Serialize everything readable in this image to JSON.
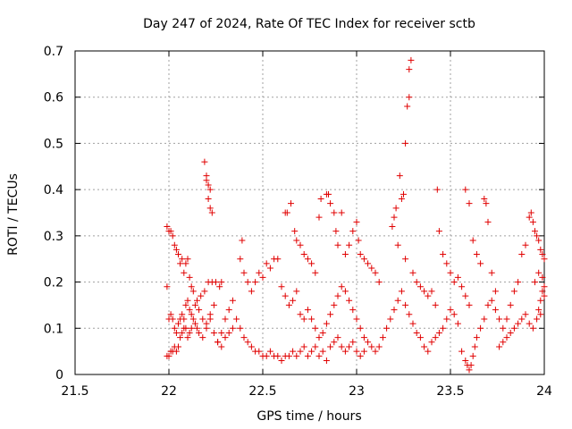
{
  "chart_data": {
    "type": "scatter",
    "title": "Day 247 of 2024, Rate Of TEC Index for receiver sctb",
    "xlabel": "GPS time / hours",
    "ylabel": "ROTI / TECUs",
    "xlim": [
      21.5,
      24
    ],
    "ylim": [
      0,
      0.7
    ],
    "xticks": [
      21.5,
      22,
      22.5,
      23,
      23.5,
      24
    ],
    "xtick_labels": [
      "21.5",
      "22",
      "22.5",
      "23",
      "23.5",
      "24"
    ],
    "yticks": [
      0,
      0.1,
      0.2,
      0.3,
      0.4,
      0.5,
      0.6,
      0.7
    ],
    "ytick_labels": [
      "0",
      "0.1",
      "0.2",
      "0.3",
      "0.4",
      "0.5",
      "0.6",
      "0.7"
    ],
    "grid": true,
    "marker": "+",
    "color": "#e00000",
    "series": [
      {
        "name": "ROTI",
        "points": [
          [
            21.99,
            0.32
          ],
          [
            22.0,
            0.31
          ],
          [
            22.01,
            0.31
          ],
          [
            22.02,
            0.3
          ],
          [
            22.03,
            0.28
          ],
          [
            22.04,
            0.27
          ],
          [
            22.05,
            0.26
          ],
          [
            22.06,
            0.24
          ],
          [
            22.07,
            0.25
          ],
          [
            22.08,
            0.22
          ],
          [
            22.09,
            0.24
          ],
          [
            22.1,
            0.25
          ],
          [
            22.11,
            0.21
          ],
          [
            22.12,
            0.19
          ],
          [
            22.13,
            0.18
          ],
          [
            22.15,
            0.16
          ],
          [
            22.17,
            0.17
          ],
          [
            22.19,
            0.18
          ],
          [
            22.21,
            0.2
          ],
          [
            22.23,
            0.2
          ],
          [
            22.25,
            0.2
          ],
          [
            22.27,
            0.19
          ],
          [
            22.28,
            0.2
          ],
          [
            21.99,
            0.19
          ],
          [
            22.0,
            0.12
          ],
          [
            22.01,
            0.13
          ],
          [
            22.02,
            0.12
          ],
          [
            22.03,
            0.1
          ],
          [
            22.04,
            0.09
          ],
          [
            22.05,
            0.11
          ],
          [
            22.06,
            0.12
          ],
          [
            22.07,
            0.13
          ],
          [
            22.08,
            0.12
          ],
          [
            22.09,
            0.1
          ],
          [
            22.1,
            0.08
          ],
          [
            22.11,
            0.09
          ],
          [
            22.12,
            0.1
          ],
          [
            22.13,
            0.12
          ],
          [
            22.14,
            0.11
          ],
          [
            22.15,
            0.1
          ],
          [
            22.16,
            0.09
          ],
          [
            22.18,
            0.08
          ],
          [
            22.2,
            0.1
          ],
          [
            22.22,
            0.12
          ],
          [
            22.24,
            0.09
          ],
          [
            22.26,
            0.07
          ],
          [
            22.28,
            0.06
          ],
          [
            22.3,
            0.08
          ],
          [
            22.32,
            0.09
          ],
          [
            22.34,
            0.1
          ],
          [
            21.99,
            0.04
          ],
          [
            22.0,
            0.04
          ],
          [
            22.01,
            0.05
          ],
          [
            22.02,
            0.05
          ],
          [
            22.03,
            0.06
          ],
          [
            22.04,
            0.05
          ],
          [
            22.05,
            0.06
          ],
          [
            22.06,
            0.08
          ],
          [
            22.07,
            0.09
          ],
          [
            22.08,
            0.1
          ],
          [
            22.09,
            0.15
          ],
          [
            22.1,
            0.16
          ],
          [
            22.11,
            0.14
          ],
          [
            22.12,
            0.13
          ],
          [
            22.14,
            0.15
          ],
          [
            22.16,
            0.14
          ],
          [
            22.18,
            0.12
          ],
          [
            22.2,
            0.11
          ],
          [
            22.22,
            0.13
          ],
          [
            22.24,
            0.15
          ],
          [
            22.19,
            0.46
          ],
          [
            22.2,
            0.43
          ],
          [
            22.21,
            0.41
          ],
          [
            22.22,
            0.4
          ],
          [
            22.21,
            0.38
          ],
          [
            22.22,
            0.36
          ],
          [
            22.23,
            0.35
          ],
          [
            22.2,
            0.42
          ],
          [
            22.26,
            0.07
          ],
          [
            22.28,
            0.09
          ],
          [
            22.3,
            0.12
          ],
          [
            22.32,
            0.14
          ],
          [
            22.34,
            0.16
          ],
          [
            22.36,
            0.12
          ],
          [
            22.38,
            0.1
          ],
          [
            22.4,
            0.08
          ],
          [
            22.42,
            0.07
          ],
          [
            22.44,
            0.06
          ],
          [
            22.46,
            0.05
          ],
          [
            22.48,
            0.05
          ],
          [
            22.5,
            0.04
          ],
          [
            22.52,
            0.04
          ],
          [
            22.54,
            0.05
          ],
          [
            22.56,
            0.04
          ],
          [
            22.58,
            0.04
          ],
          [
            22.6,
            0.03
          ],
          [
            22.62,
            0.04
          ],
          [
            22.64,
            0.04
          ],
          [
            22.66,
            0.05
          ],
          [
            22.68,
            0.04
          ],
          [
            22.7,
            0.05
          ],
          [
            22.72,
            0.06
          ],
          [
            22.74,
            0.04
          ],
          [
            22.76,
            0.05
          ],
          [
            22.78,
            0.06
          ],
          [
            22.8,
            0.04
          ],
          [
            22.82,
            0.05
          ],
          [
            22.84,
            0.03
          ],
          [
            22.38,
            0.25
          ],
          [
            22.39,
            0.29
          ],
          [
            22.4,
            0.22
          ],
          [
            22.42,
            0.2
          ],
          [
            22.44,
            0.18
          ],
          [
            22.46,
            0.2
          ],
          [
            22.48,
            0.22
          ],
          [
            22.5,
            0.21
          ],
          [
            22.52,
            0.24
          ],
          [
            22.54,
            0.23
          ],
          [
            22.56,
            0.25
          ],
          [
            22.58,
            0.25
          ],
          [
            22.6,
            0.19
          ],
          [
            22.62,
            0.17
          ],
          [
            22.64,
            0.15
          ],
          [
            22.66,
            0.16
          ],
          [
            22.68,
            0.18
          ],
          [
            22.7,
            0.13
          ],
          [
            22.72,
            0.12
          ],
          [
            22.74,
            0.14
          ],
          [
            22.62,
            0.35
          ],
          [
            22.63,
            0.35
          ],
          [
            22.65,
            0.37
          ],
          [
            22.67,
            0.31
          ],
          [
            22.68,
            0.29
          ],
          [
            22.7,
            0.28
          ],
          [
            22.72,
            0.26
          ],
          [
            22.74,
            0.25
          ],
          [
            22.76,
            0.24
          ],
          [
            22.78,
            0.22
          ],
          [
            22.8,
            0.34
          ],
          [
            22.81,
            0.38
          ],
          [
            22.84,
            0.39
          ],
          [
            22.85,
            0.39
          ],
          [
            22.86,
            0.37
          ],
          [
            22.88,
            0.35
          ],
          [
            22.89,
            0.31
          ],
          [
            22.9,
            0.28
          ],
          [
            22.92,
            0.35
          ],
          [
            22.94,
            0.26
          ],
          [
            22.96,
            0.28
          ],
          [
            22.98,
            0.31
          ],
          [
            23.0,
            0.33
          ],
          [
            23.01,
            0.29
          ],
          [
            23.02,
            0.26
          ],
          [
            23.04,
            0.25
          ],
          [
            23.06,
            0.24
          ],
          [
            23.08,
            0.23
          ],
          [
            23.1,
            0.22
          ],
          [
            23.12,
            0.2
          ],
          [
            22.76,
            0.12
          ],
          [
            22.78,
            0.1
          ],
          [
            22.8,
            0.08
          ],
          [
            22.82,
            0.09
          ],
          [
            22.84,
            0.11
          ],
          [
            22.86,
            0.13
          ],
          [
            22.88,
            0.15
          ],
          [
            22.9,
            0.17
          ],
          [
            22.92,
            0.19
          ],
          [
            22.94,
            0.18
          ],
          [
            22.96,
            0.16
          ],
          [
            22.98,
            0.14
          ],
          [
            23.0,
            0.12
          ],
          [
            23.02,
            0.1
          ],
          [
            23.04,
            0.08
          ],
          [
            23.06,
            0.07
          ],
          [
            23.08,
            0.06
          ],
          [
            23.1,
            0.05
          ],
          [
            23.12,
            0.06
          ],
          [
            23.14,
            0.08
          ],
          [
            22.86,
            0.06
          ],
          [
            22.88,
            0.07
          ],
          [
            22.9,
            0.08
          ],
          [
            22.92,
            0.06
          ],
          [
            22.94,
            0.05
          ],
          [
            22.96,
            0.06
          ],
          [
            22.98,
            0.07
          ],
          [
            23.0,
            0.05
          ],
          [
            23.02,
            0.04
          ],
          [
            23.04,
            0.05
          ],
          [
            23.16,
            0.1
          ],
          [
            23.18,
            0.12
          ],
          [
            23.2,
            0.14
          ],
          [
            23.22,
            0.16
          ],
          [
            23.24,
            0.18
          ],
          [
            23.26,
            0.15
          ],
          [
            23.28,
            0.13
          ],
          [
            23.3,
            0.11
          ],
          [
            23.32,
            0.09
          ],
          [
            23.34,
            0.08
          ],
          [
            23.19,
            0.32
          ],
          [
            23.2,
            0.34
          ],
          [
            23.21,
            0.36
          ],
          [
            23.23,
            0.43
          ],
          [
            23.24,
            0.38
          ],
          [
            23.25,
            0.39
          ],
          [
            23.26,
            0.5
          ],
          [
            23.27,
            0.58
          ],
          [
            23.28,
            0.66
          ],
          [
            23.29,
            0.68
          ],
          [
            23.28,
            0.6
          ],
          [
            23.22,
            0.28
          ],
          [
            23.26,
            0.25
          ],
          [
            23.3,
            0.22
          ],
          [
            23.32,
            0.2
          ],
          [
            23.34,
            0.19
          ],
          [
            23.36,
            0.18
          ],
          [
            23.38,
            0.17
          ],
          [
            23.4,
            0.18
          ],
          [
            23.42,
            0.15
          ],
          [
            23.36,
            0.06
          ],
          [
            23.38,
            0.05
          ],
          [
            23.4,
            0.07
          ],
          [
            23.42,
            0.08
          ],
          [
            23.44,
            0.09
          ],
          [
            23.46,
            0.1
          ],
          [
            23.48,
            0.12
          ],
          [
            23.5,
            0.14
          ],
          [
            23.52,
            0.13
          ],
          [
            23.54,
            0.11
          ],
          [
            23.43,
            0.4
          ],
          [
            23.44,
            0.31
          ],
          [
            23.46,
            0.26
          ],
          [
            23.48,
            0.24
          ],
          [
            23.5,
            0.22
          ],
          [
            23.52,
            0.2
          ],
          [
            23.54,
            0.21
          ],
          [
            23.56,
            0.19
          ],
          [
            23.58,
            0.17
          ],
          [
            23.6,
            0.15
          ],
          [
            23.58,
            0.4
          ],
          [
            23.6,
            0.37
          ],
          [
            23.62,
            0.29
          ],
          [
            23.64,
            0.26
          ],
          [
            23.66,
            0.24
          ],
          [
            23.68,
            0.38
          ],
          [
            23.69,
            0.37
          ],
          [
            23.7,
            0.33
          ],
          [
            23.72,
            0.22
          ],
          [
            23.74,
            0.18
          ],
          [
            23.56,
            0.05
          ],
          [
            23.58,
            0.03
          ],
          [
            23.59,
            0.02
          ],
          [
            23.6,
            0.01
          ],
          [
            23.61,
            0.02
          ],
          [
            23.62,
            0.04
          ],
          [
            23.63,
            0.06
          ],
          [
            23.64,
            0.08
          ],
          [
            23.66,
            0.1
          ],
          [
            23.68,
            0.12
          ],
          [
            23.7,
            0.15
          ],
          [
            23.72,
            0.16
          ],
          [
            23.74,
            0.14
          ],
          [
            23.76,
            0.12
          ],
          [
            23.78,
            0.1
          ],
          [
            23.8,
            0.12
          ],
          [
            23.82,
            0.15
          ],
          [
            23.84,
            0.18
          ],
          [
            23.86,
            0.2
          ],
          [
            23.88,
            0.26
          ],
          [
            23.9,
            0.28
          ],
          [
            23.92,
            0.34
          ],
          [
            23.93,
            0.35
          ],
          [
            23.94,
            0.33
          ],
          [
            23.95,
            0.31
          ],
          [
            23.96,
            0.3
          ],
          [
            23.97,
            0.29
          ],
          [
            23.98,
            0.27
          ],
          [
            23.99,
            0.26
          ],
          [
            24.0,
            0.25
          ],
          [
            23.76,
            0.06
          ],
          [
            23.78,
            0.07
          ],
          [
            23.8,
            0.08
          ],
          [
            23.82,
            0.09
          ],
          [
            23.84,
            0.1
          ],
          [
            23.86,
            0.11
          ],
          [
            23.88,
            0.12
          ],
          [
            23.9,
            0.13
          ],
          [
            23.92,
            0.11
          ],
          [
            23.94,
            0.1
          ],
          [
            23.96,
            0.12
          ],
          [
            23.97,
            0.14
          ],
          [
            23.98,
            0.16
          ],
          [
            23.99,
            0.18
          ],
          [
            24.0,
            0.17
          ],
          [
            23.95,
            0.2
          ],
          [
            23.97,
            0.22
          ],
          [
            23.99,
            0.21
          ],
          [
            24.0,
            0.19
          ],
          [
            23.98,
            0.13
          ]
        ]
      }
    ]
  }
}
